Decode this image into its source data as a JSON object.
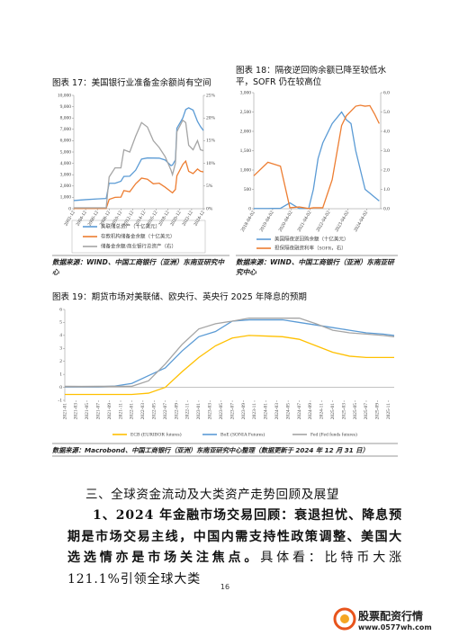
{
  "chart_data": [
    {
      "type": "line",
      "title": "图表 17：美国银行业准备金余额尚有空间",
      "source": "数据来源：WIND、中国工商银行（亚洲）东南亚研究中心",
      "x": [
        "2002-12",
        "2004-12",
        "2006-12",
        "2008-06",
        "2008-12",
        "2009-12",
        "2010-12",
        "2011-06",
        "2012-06",
        "2013-06",
        "2014-06",
        "2015-06",
        "2016-06",
        "2017-06",
        "2018-06",
        "2019-06",
        "2019-09",
        "2020-03",
        "2020-06",
        "2021-06",
        "2021-12",
        "2022-06",
        "2023-03",
        "2023-12",
        "2024-06",
        "2024-12"
      ],
      "xlim": [
        "2002-12",
        "2024-12"
      ],
      "xticks": [
        "2002-12",
        "2004-12",
        "2006-12",
        "2008-12",
        "2010-12",
        "2012-12",
        "2014-12",
        "2016-12",
        "2018-12",
        "2020-12",
        "2022-12",
        "2024-12"
      ],
      "ylim": [
        0,
        10000
      ],
      "yticks": [
        0,
        {
          "value": 1000,
          "label": "1,000"
        },
        {
          "value": 2000,
          "label": "2,000"
        },
        {
          "value": 3000,
          "label": "3,000"
        },
        {
          "value": 4000,
          "label": "4,000"
        },
        {
          "value": 5000,
          "label": "5,000"
        },
        {
          "value": 6000,
          "label": "6,000"
        },
        {
          "value": 7000,
          "label": "7,000"
        },
        {
          "value": 8000,
          "label": "8,000"
        },
        {
          "value": 9000,
          "label": "9,000"
        },
        {
          "value": 10000,
          "label": "10,000"
        }
      ],
      "y2lim": [
        0,
        25
      ],
      "y2ticks": [
        {
          "value": 0,
          "label": "0%"
        },
        {
          "value": 5,
          "label": "5%"
        },
        {
          "value": 10,
          "label": "10%"
        },
        {
          "value": 15,
          "label": "15%"
        },
        {
          "value": 20,
          "label": "20%"
        },
        {
          "value": 25,
          "label": "25%"
        }
      ],
      "series": [
        {
          "name": "美联储总资产（十亿美元）",
          "color": "#5b9bd5",
          "values": [
            720,
            800,
            860,
            900,
            2240,
            2240,
            2420,
            2850,
            2870,
            3400,
            4380,
            4480,
            4470,
            4460,
            4300,
            3800,
            3850,
            4300,
            7100,
            8000,
            8750,
            8900,
            8700,
            7700,
            7250,
            6900
          ]
        },
        {
          "name": "存款机构储备金余额（十亿美元）",
          "color": "#ed7d31",
          "values": [
            20,
            20,
            20,
            20,
            820,
            1000,
            1020,
            1600,
            1500,
            2200,
            2700,
            2600,
            2200,
            2250,
            1900,
            1500,
            1400,
            1700,
            2900,
            3900,
            4200,
            3300,
            3100,
            3500,
            3300,
            3250
          ]
        },
        {
          "name": "储备金余额/商业银行总资产（右）",
          "color": "#a5a5a5",
          "axis": "y2",
          "values": [
            0.2,
            0.2,
            0.2,
            0.2,
            7,
            9,
            9,
            13,
            12.5,
            16,
            19,
            18,
            15,
            13.5,
            11.5,
            8.5,
            7.5,
            10,
            17,
            19.5,
            19,
            14,
            13,
            15,
            13,
            12.8
          ]
        }
      ]
    },
    {
      "type": "line",
      "title": "图表 18：隔夜逆回购余额已降至较低水平，SOFR 仍在较高位",
      "source": "数据来源：WIND、中国工商银行（亚洲）东南亚研究中心",
      "x": [
        "2018-04-02",
        "2019-01-02",
        "2019-09-02",
        "2020-03-02",
        "2020-09-02",
        "2021-03-02",
        "2021-06-02",
        "2021-09-02",
        "2021-12-02",
        "2022-06-02",
        "2022-12-02",
        "2023-03-02",
        "2023-06-02",
        "2023-09-02",
        "2023-12-02",
        "2024-03-02",
        "2024-06-02",
        "2024-09-02",
        "2024-12-02"
      ],
      "xlim": [
        "2018-04-02",
        "2024-12-31"
      ],
      "xticks": [
        "2018-04-02",
        "2019-04-02",
        "2020-04-02",
        "2021-04-02",
        "2022-04-02",
        "2023-04-02",
        "2024-04-02"
      ],
      "ylim": [
        0,
        3000
      ],
      "yticks": [
        0,
        500,
        {
          "value": 1000,
          "label": "1,000"
        },
        {
          "value": 1500,
          "label": "1,500"
        },
        {
          "value": 2000,
          "label": "2,000"
        },
        {
          "value": 2500,
          "label": "2,500"
        },
        {
          "value": 3000,
          "label": "3,000"
        }
      ],
      "y2lim": [
        0,
        6
      ],
      "y2ticks": [
        {
          "value": 0,
          "label": "0.0"
        },
        {
          "value": 1,
          "label": "1.0"
        },
        {
          "value": 2,
          "label": "2.0"
        },
        {
          "value": 3,
          "label": "3.0"
        },
        {
          "value": 4,
          "label": "4.0"
        },
        {
          "value": 5,
          "label": "5.0"
        },
        {
          "value": 6,
          "label": "6.0"
        }
      ],
      "series": [
        {
          "name": "美国隔夜逆回购余额（十亿美元）",
          "color": "#5b9bd5",
          "values": [
            5,
            5,
            10,
            150,
            5,
            5,
            500,
            1300,
            1700,
            2200,
            2500,
            2300,
            2200,
            1500,
            1000,
            500,
            400,
            300,
            200
          ]
        },
        {
          "name": "担保隔夜融资利率（SOFR，右）",
          "color": "#ed7d31",
          "axis": "y2",
          "values": [
            1.7,
            2.4,
            2.2,
            0.05,
            0.09,
            0.01,
            0.05,
            0.05,
            0.05,
            1.5,
            4.3,
            4.8,
            5.05,
            5.3,
            5.35,
            5.3,
            5.33,
            4.9,
            4.4
          ]
        }
      ]
    },
    {
      "type": "line",
      "title": "图表 19：期货市场对美联储、欧央行、英央行 2025 年降息的预期",
      "source": "数据来源：Macrobond、中国工商银行（亚洲）东南亚研究中心整理（数据更新于 2024 年 12 月 31 日）",
      "x": [
        "2021-01",
        "2021-04",
        "2021-07",
        "2021-10",
        "2022-01",
        "2022-04",
        "2022-07",
        "2022-10",
        "2023-01",
        "2023-04",
        "2023-07",
        "2023-10",
        "2024-01",
        "2024-04",
        "2024-07",
        "2024-10",
        "2025-01",
        "2025-04",
        "2025-07",
        "2025-10",
        "2025-12"
      ],
      "xlim": [
        "2021-01",
        "2025-12"
      ],
      "xticks": [
        "2021-01",
        "2021-03",
        "2021-05",
        "2021-07",
        "2021-09",
        "2021-11",
        "2022-01",
        "2022-03",
        "2022-05",
        "2022-07",
        "2022-09",
        "2022-11",
        "2023-01",
        "2023-03",
        "2023-05",
        "2023-07",
        "2023-09",
        "2023-11",
        "2024-01",
        "2024-03",
        "2024-05",
        "2024-07",
        "2024-09",
        "2024-11",
        "2025-01",
        "2025-03",
        "2025-05",
        "2025-07",
        "2025-09",
        "2025-11"
      ],
      "ylim": [
        -1,
        6
      ],
      "yticks": [
        -1,
        0,
        1,
        2,
        3,
        4,
        5,
        6
      ],
      "series": [
        {
          "name": "ECB (EURIBOR futures)",
          "color": "#ffc000",
          "values": [
            -0.55,
            -0.55,
            -0.55,
            -0.55,
            -0.55,
            -0.45,
            0.0,
            1.2,
            2.3,
            3.2,
            3.8,
            4.0,
            3.95,
            3.9,
            3.7,
            3.2,
            2.7,
            2.4,
            2.3,
            2.3,
            2.3
          ]
        },
        {
          "name": "BoE (SONIA Futures)",
          "color": "#5b9bd5",
          "values": [
            0.05,
            0.05,
            0.05,
            0.1,
            0.3,
            0.9,
            1.5,
            2.8,
            3.9,
            4.3,
            5.1,
            5.2,
            5.2,
            5.2,
            5.0,
            4.8,
            4.6,
            4.4,
            4.2,
            4.1,
            4.0
          ]
        },
        {
          "name": "Fed (Fed funds futures)",
          "color": "#a5a5a5",
          "values": [
            0.08,
            0.07,
            0.08,
            0.08,
            0.08,
            0.5,
            1.8,
            3.3,
            4.5,
            4.9,
            5.1,
            5.33,
            5.33,
            5.33,
            5.33,
            4.9,
            4.4,
            4.2,
            4.1,
            4.0,
            3.9
          ]
        }
      ]
    }
  ],
  "section_heading": "三、全球资金流动及大类资产走势回顾及展望",
  "paragraph": [
    {
      "text": "1、2024 年金融市场交易回顾：衰退担忧、降息预期是市场交易主线，中国内需支持性政策调整、美国大选选情亦是市场关注焦点。",
      "bold": true
    },
    {
      "text": "具体看：比特币大涨 121.1%引领全球大类",
      "bold": false
    }
  ],
  "page_number": "16",
  "watermark": {
    "name": "股票配资行情",
    "url": "www.0577wh.com"
  }
}
